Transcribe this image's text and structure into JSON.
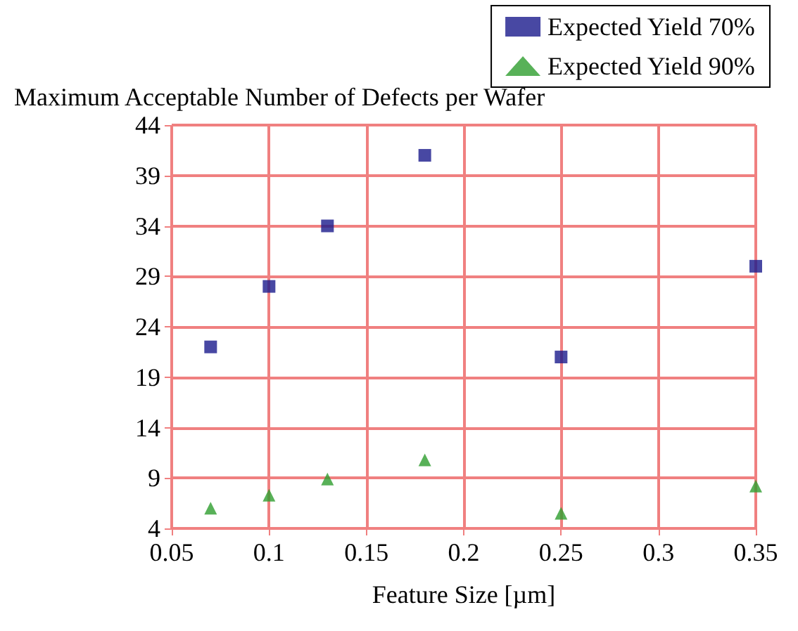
{
  "chart_data": {
    "type": "scatter",
    "xlabel": "Feature Size [µm]",
    "ylabel": "Maximum Acceptable Number of Defects per Wafer",
    "series": [
      {
        "name": "Expected Yield 70%",
        "color": "#1a1a8c",
        "marker": "square",
        "x": [
          0.07,
          0.1,
          0.13,
          0.18,
          0.25,
          0.35
        ],
        "values": [
          22,
          28,
          34,
          41,
          21,
          30
        ]
      },
      {
        "name": "Expected Yield 90%",
        "color": "#2e9e2e",
        "marker": "triangle",
        "x": [
          0.07,
          0.1,
          0.13,
          0.18,
          0.25,
          0.35
        ],
        "values": [
          6,
          7.3,
          8.9,
          10.8,
          5.5,
          8.2
        ]
      }
    ],
    "xlim": [
      0.05,
      0.35
    ],
    "xticks": [
      0.05,
      0.1,
      0.15,
      0.2,
      0.25,
      0.3,
      0.35
    ],
    "ylim": [
      4,
      44
    ],
    "yticks": [
      4,
      9,
      14,
      19,
      24,
      29,
      34,
      39,
      44
    ],
    "grid": true,
    "legend": "top right"
  }
}
